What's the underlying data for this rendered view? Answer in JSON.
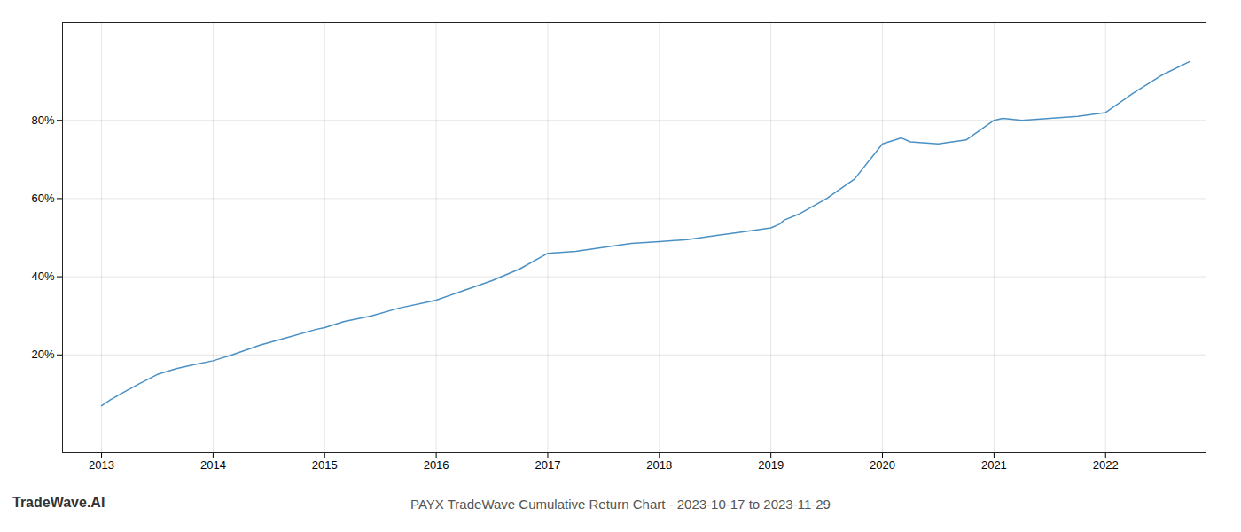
{
  "chart_data": {
    "type": "line",
    "title": "PAYX TradeWave Cumulative Return Chart - 2023-10-17 to 2023-11-29",
    "annotations": [
      "TradeWave.AI"
    ],
    "x": [
      2013.0,
      2013.08,
      2013.17,
      2013.33,
      2013.5,
      2013.67,
      2013.83,
      2014.0,
      2014.17,
      2014.42,
      2014.67,
      2014.92,
      2015.0,
      2015.17,
      2015.42,
      2015.67,
      2015.92,
      2016.0,
      2016.25,
      2016.5,
      2016.75,
      2017.0,
      2017.25,
      2017.5,
      2017.75,
      2018.0,
      2018.25,
      2018.5,
      2018.75,
      2019.0,
      2019.08,
      2019.12,
      2019.25,
      2019.5,
      2019.75,
      2020.0,
      2020.17,
      2020.25,
      2020.5,
      2020.75,
      2021.0,
      2021.08,
      2021.25,
      2021.5,
      2021.75,
      2022.0,
      2022.25,
      2022.5,
      2022.75
    ],
    "values": [
      7.0,
      8.5,
      10.0,
      12.5,
      15.0,
      16.5,
      17.5,
      18.5,
      20.0,
      22.5,
      24.5,
      26.5,
      27.0,
      28.5,
      30.0,
      32.0,
      33.5,
      34.0,
      36.5,
      39.0,
      42.0,
      46.0,
      46.5,
      47.5,
      48.5,
      49.0,
      49.5,
      50.5,
      51.5,
      52.5,
      53.5,
      54.5,
      56.0,
      60.0,
      65.0,
      74.0,
      75.5,
      74.5,
      74.0,
      75.0,
      80.0,
      80.5,
      80.0,
      80.5,
      81.0,
      82.0,
      87.0,
      91.5,
      95.0
    ],
    "color": "#4a90c4",
    "xlim": [
      2012.65,
      2022.9
    ],
    "xticks": [
      2013,
      2014,
      2015,
      2016,
      2017,
      2018,
      2019,
      2020,
      2021,
      2022
    ],
    "ylim": [
      -5,
      105
    ],
    "yticks": [
      {
        "value": 20,
        "label": "20%"
      },
      {
        "value": 40,
        "label": "40%"
      },
      {
        "value": 60,
        "label": "60%"
      },
      {
        "value": 80,
        "label": "80%"
      }
    ],
    "grid": true
  }
}
